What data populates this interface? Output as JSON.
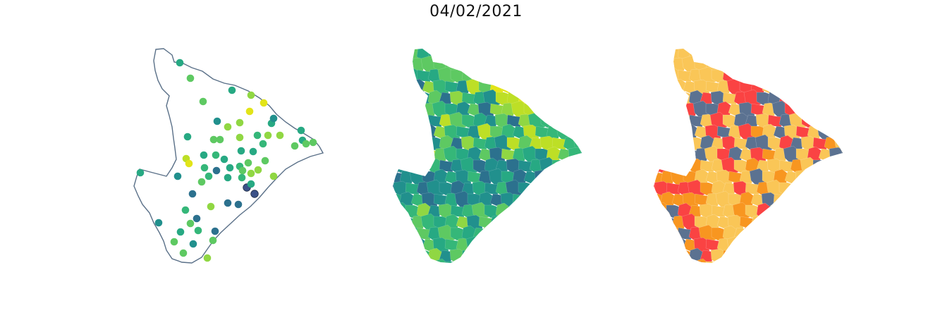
{
  "title": "04/02/2021",
  "colors": {
    "outline": "#5a7088",
    "viridis": [
      "#3b5288",
      "#2c718e",
      "#21908d",
      "#27a983",
      "#35b779",
      "#5ec962",
      "#90d743",
      "#bddf26",
      "#e2e418"
    ],
    "darkest": "#440154",
    "risk": [
      "#5b7291",
      "#fac657",
      "#f89620",
      "#fa4343"
    ]
  },
  "chart_data": [
    {
      "type": "scatter",
      "title": "",
      "legend": "none"
    },
    {
      "type": "heatmap",
      "title": "",
      "legend": "none"
    },
    {
      "type": "heatmap",
      "title": "",
      "legend": "none"
    }
  ]
}
